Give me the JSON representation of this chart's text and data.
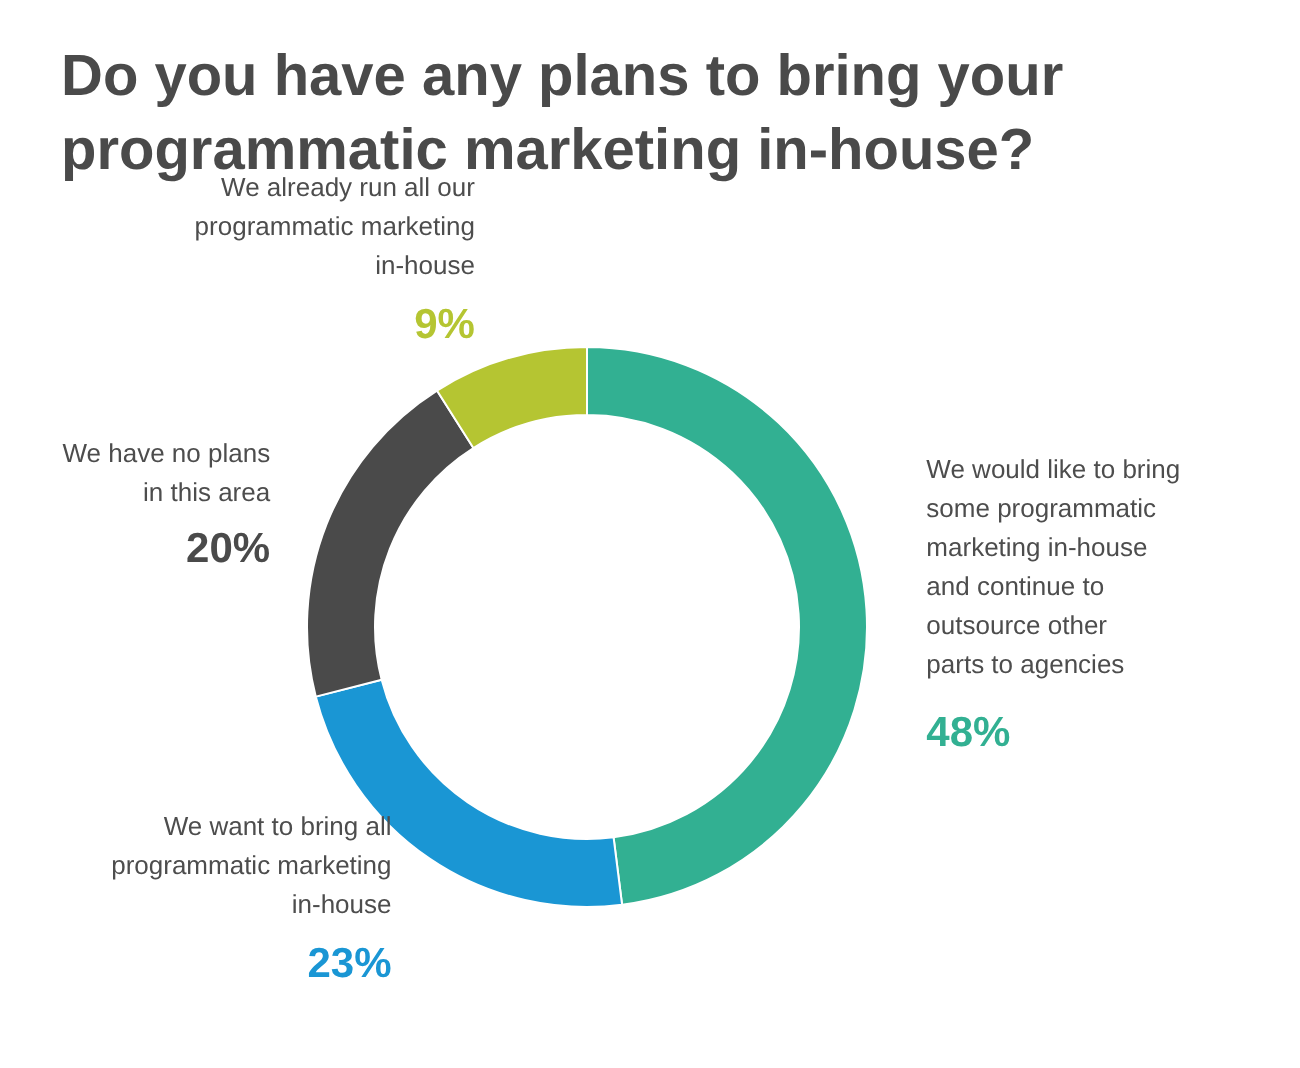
{
  "chart_data": {
    "type": "donut",
    "title": "Do you have any plans to bring your\nprogrammatic marketing in-house?",
    "categories": [
      "We would like to bring\nsome programmatic\nmarketing in-house\nand continue to\noutsource other\nparts to agencies",
      "We want to bring all\nprogrammatic marketing\nin-house",
      "We have no plans\nin this area",
      "We already run all our\nprogrammatic marketing\nin-house"
    ],
    "values": [
      48,
      23,
      20,
      9
    ],
    "colors": [
      "#32b092",
      "#1a96d4",
      "#4a4a4a",
      "#b5c532"
    ],
    "value_labels": [
      "48%",
      "23%",
      "20%",
      "9%"
    ]
  }
}
